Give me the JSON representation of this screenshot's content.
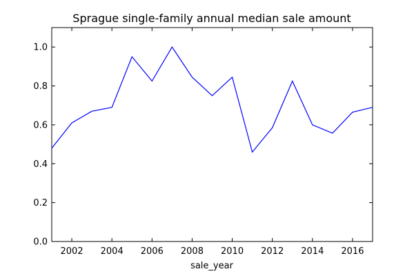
{
  "chart_data": {
    "type": "line",
    "title": "Sprague single-family annual median sale amount",
    "xlabel": "sale_year",
    "ylabel": "",
    "xlim": [
      2001,
      2017
    ],
    "ylim": [
      0.0,
      1.1
    ],
    "xticks": [
      2002,
      2004,
      2006,
      2008,
      2010,
      2012,
      2014,
      2016
    ],
    "yticks": [
      0.0,
      0.2,
      0.4,
      0.6,
      0.8,
      1.0
    ],
    "xtick_labels": [
      "2002",
      "2004",
      "2006",
      "2008",
      "2010",
      "2012",
      "2014",
      "2016"
    ],
    "ytick_labels": [
      "0.0",
      "0.2",
      "0.4",
      "0.6",
      "0.8",
      "1.0"
    ],
    "grid": false,
    "legend": "none",
    "series": [
      {
        "color": "#0000ff",
        "x": [
          2001,
          2002,
          2003,
          2004,
          2005,
          2006,
          2007,
          2008,
          2009,
          2010,
          2011,
          2012,
          2013,
          2014,
          2015,
          2016,
          2017
        ],
        "y": [
          0.48,
          0.61,
          0.67,
          0.69,
          0.95,
          0.825,
          1.0,
          0.845,
          0.75,
          0.845,
          0.46,
          0.585,
          0.825,
          0.6,
          0.557,
          0.665,
          0.69
        ]
      }
    ]
  }
}
